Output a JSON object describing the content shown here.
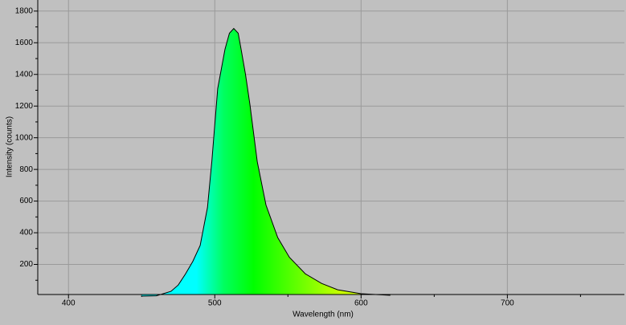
{
  "chart_data": {
    "type": "area",
    "xlabel": "Wavelength (nm)",
    "ylabel": "Intensity (counts)",
    "x": [
      450,
      460,
      470,
      475,
      480,
      485,
      490,
      495,
      498,
      502,
      507,
      510,
      513,
      516,
      518,
      521,
      524,
      529,
      535,
      543,
      551,
      562,
      573,
      584,
      600,
      620
    ],
    "values": [
      0,
      2,
      30,
      70,
      140,
      220,
      320,
      560,
      850,
      1310,
      1560,
      1660,
      1690,
      1660,
      1560,
      1400,
      1210,
      850,
      575,
      370,
      245,
      140,
      80,
      40,
      15,
      5
    ],
    "color": "#000000",
    "xlim": [
      379,
      780
    ],
    "xticks": [
      400,
      500,
      600,
      700
    ],
    "xminorticks": [
      450,
      550,
      650,
      750
    ],
    "ylim": [
      10,
      1870
    ],
    "yticks": [
      200,
      400,
      600,
      800,
      1000,
      1200,
      1400,
      1600,
      1800
    ],
    "yminorticks": [
      100,
      300,
      500,
      700,
      900,
      1100,
      1300,
      1500,
      1700
    ],
    "grid": true
  }
}
